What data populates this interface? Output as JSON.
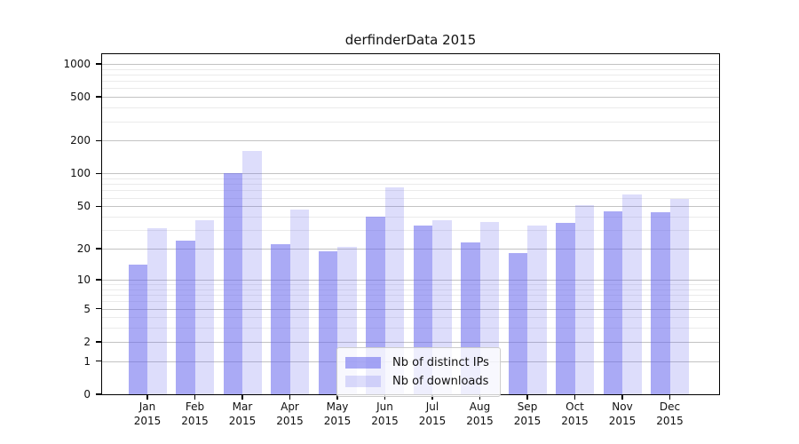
{
  "title": "derfinderData 2015",
  "chart_data": {
    "type": "bar",
    "title": "derfinderData 2015",
    "categories": [
      "Jan",
      "Feb",
      "Mar",
      "Apr",
      "May",
      "Jun",
      "Jul",
      "Aug",
      "Sep",
      "Oct",
      "Nov",
      "Dec"
    ],
    "x_tick_year": "2015",
    "series": [
      {
        "name": "Nb of distinct IPs",
        "values": [
          14,
          24,
          100,
          22,
          19,
          40,
          33,
          23,
          18,
          35,
          45,
          44
        ],
        "color": "rgba(101,101,237,0.55)"
      },
      {
        "name": "Nb of downloads",
        "values": [
          31,
          37,
          160,
          47,
          21,
          75,
          37,
          36,
          33,
          51,
          64,
          58
        ],
        "color": "rgba(101,101,237,0.22)"
      }
    ],
    "y_ticks": [
      0,
      1,
      2,
      5,
      10,
      20,
      50,
      100,
      200,
      500,
      1000
    ],
    "y_scale": "log10(value+1)",
    "ylim": [
      0,
      1000
    ],
    "grid": true,
    "legend_position": "bottom-center"
  },
  "colors": {
    "bar_base": "#6565ed",
    "ips_fill_over_white": "#a8a8f4",
    "downloads_fill_over_white": "#dcdcf8",
    "grid_major": "#c3c3c3",
    "grid_minor": "#ebebeb",
    "axis": "#000000",
    "legend_border": "#cccccc",
    "background": "#ffffff"
  }
}
